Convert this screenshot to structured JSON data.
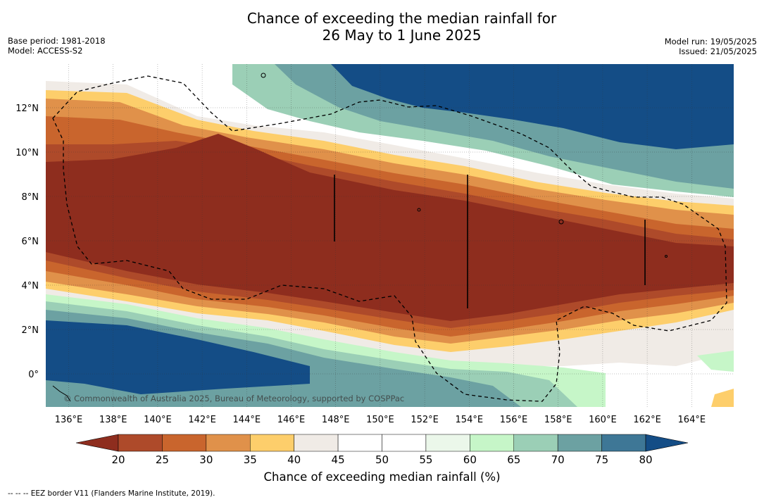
{
  "title": {
    "line1": "Chance of exceeding the median rainfall for",
    "line2": "26 May to 1 June 2025"
  },
  "meta": {
    "base_period": "Base period: 1981-2018",
    "model": "Model: ACCESS-S2",
    "model_run": "Model run: 19/05/2025",
    "issued": "Issued: 21/05/2025"
  },
  "map": {
    "lon_labels": [
      "136°E",
      "138°E",
      "140°E",
      "142°E",
      "144°E",
      "146°E",
      "148°E",
      "150°E",
      "152°E",
      "154°E",
      "156°E",
      "158°E",
      "160°E",
      "162°E",
      "164°E"
    ],
    "lat_labels": [
      "12°N",
      "10°N",
      "8°N",
      "6°N",
      "4°N",
      "2°N",
      "0°"
    ],
    "copyright": "© Commonwealth of Australia 2025, Bureau of Meteorology, supported by COSPPac"
  },
  "colorbar": {
    "ticks": [
      "20",
      "25",
      "30",
      "35",
      "40",
      "45",
      "50",
      "55",
      "60",
      "65",
      "70",
      "75",
      "80"
    ],
    "colors": [
      "#8e2d1e",
      "#ae4a2a",
      "#c9652d",
      "#e0914a",
      "#fdce6b",
      "#f0ebe6",
      "#ffffff",
      "#ffffff",
      "#ebf7ea",
      "#c6f6c8",
      "#9bcfb6",
      "#6ca1a2",
      "#3e7796",
      "#144d86"
    ],
    "label": "Chance of exceeding median rainfall (%)"
  },
  "footer_note": "--  --  -- EEZ border V11 (Flanders Marine Institute, 2019)."
}
